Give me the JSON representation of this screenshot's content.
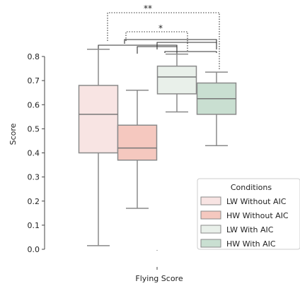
{
  "chart_data": {
    "type": "box",
    "title": "",
    "xlabel": "Flying Score",
    "ylabel": "Score",
    "ylim": [
      0,
      0.85
    ],
    "yticks": [
      "0.0",
      "0.1",
      "0.2",
      "0.3",
      "0.4",
      "0.5",
      "0.6",
      "0.7",
      "0.8"
    ],
    "legend": {
      "title": "Conditions",
      "placement": "lower-right"
    },
    "series": [
      {
        "name": "LW Without AIC",
        "color": "#f8e4e3",
        "whisker_low": 0.015,
        "q1": 0.4,
        "median": 0.56,
        "q3": 0.68,
        "whisker_high": 0.83
      },
      {
        "name": "HW Without AIC",
        "color": "#f5c8bf",
        "whisker_low": 0.17,
        "q1": 0.37,
        "median": 0.42,
        "q3": 0.515,
        "whisker_high": 0.66
      },
      {
        "name": "LW With AIC",
        "color": "#e9f0ea",
        "whisker_low": 0.57,
        "q1": 0.645,
        "median": 0.715,
        "q3": 0.76,
        "whisker_high": 0.81
      },
      {
        "name": "HW With AIC",
        "color": "#c9dfd1",
        "whisker_low": 0.43,
        "q1": 0.56,
        "median": 0.625,
        "q3": 0.69,
        "whisker_high": 0.735
      }
    ],
    "significance": [
      {
        "pair": [
          0,
          3
        ],
        "label": "**",
        "style": "dotted"
      },
      {
        "pair": [
          1,
          2
        ],
        "label": "*",
        "style": "dotted"
      }
    ]
  }
}
